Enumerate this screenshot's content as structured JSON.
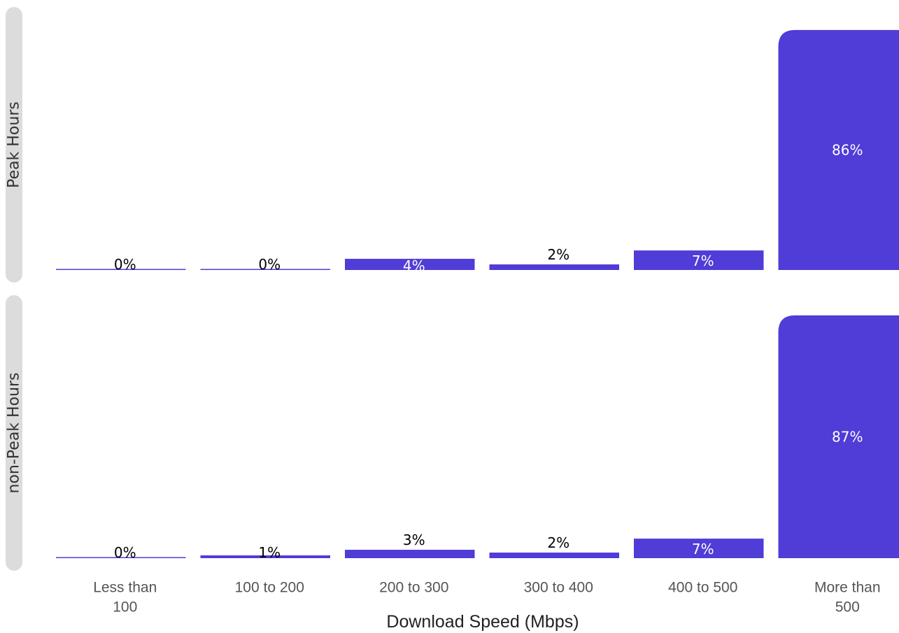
{
  "chart_data": {
    "type": "bar",
    "xlabel": "Download Speed (Mbps)",
    "categories": [
      "Less than 100",
      "100 to 200",
      "200 to 300",
      "300 to 400",
      "400 to 500",
      "More than 500"
    ],
    "category_lines": [
      [
        "Less than",
        "100"
      ],
      [
        "100 to 200"
      ],
      [
        "200 to 300"
      ],
      [
        "300 to 400"
      ],
      [
        "400 to 500"
      ],
      [
        "More than",
        "500"
      ]
    ],
    "facets": [
      {
        "label": "Peak Hours",
        "values": [
          0,
          0,
          4,
          2,
          7,
          86
        ],
        "value_labels": [
          "0%",
          "0%",
          "4%",
          "2%",
          "7%",
          "86%"
        ]
      },
      {
        "label": "non-Peak Hours",
        "values": [
          0,
          1,
          3,
          2,
          7,
          87
        ],
        "value_labels": [
          "0%",
          "1%",
          "3%",
          "2%",
          "7%",
          "87%"
        ]
      }
    ],
    "bar_color": "#503CD7",
    "label_color_inside": "#ffffff",
    "label_color_outside": "#000000",
    "strip_color": "#dcdcdc"
  }
}
